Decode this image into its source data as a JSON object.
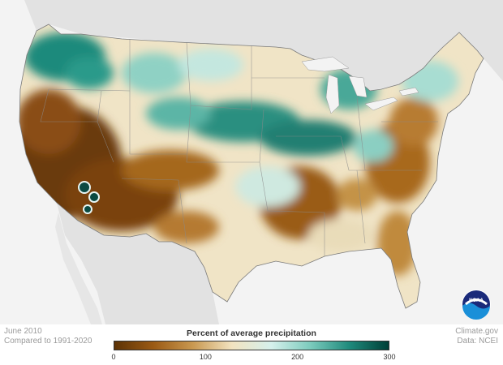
{
  "caption": {
    "date": "June 2010",
    "baseline": "Compared to 1991-2020",
    "credit": "Climate.gov",
    "source": "Data: NCEI"
  },
  "legend": {
    "title": "Percent of average precipitation",
    "ticks": [
      {
        "label": "0",
        "value": 0
      },
      {
        "label": "100",
        "value": 100
      },
      {
        "label": "200",
        "value": 200
      },
      {
        "label": "300",
        "value": 300
      }
    ],
    "range": [
      0,
      300
    ],
    "colors": [
      "#5c3205",
      "#9b5a14",
      "#c99850",
      "#f2e3c0",
      "#d6f0ec",
      "#7ccbbd",
      "#1e8a7c",
      "#003f37"
    ]
  },
  "logo": {
    "name": "noaa-logo",
    "text": "NOAA"
  },
  "colors": {
    "land_background": "#e0e0e0",
    "ocean": "#f3f3f3",
    "border": "#888888"
  }
}
